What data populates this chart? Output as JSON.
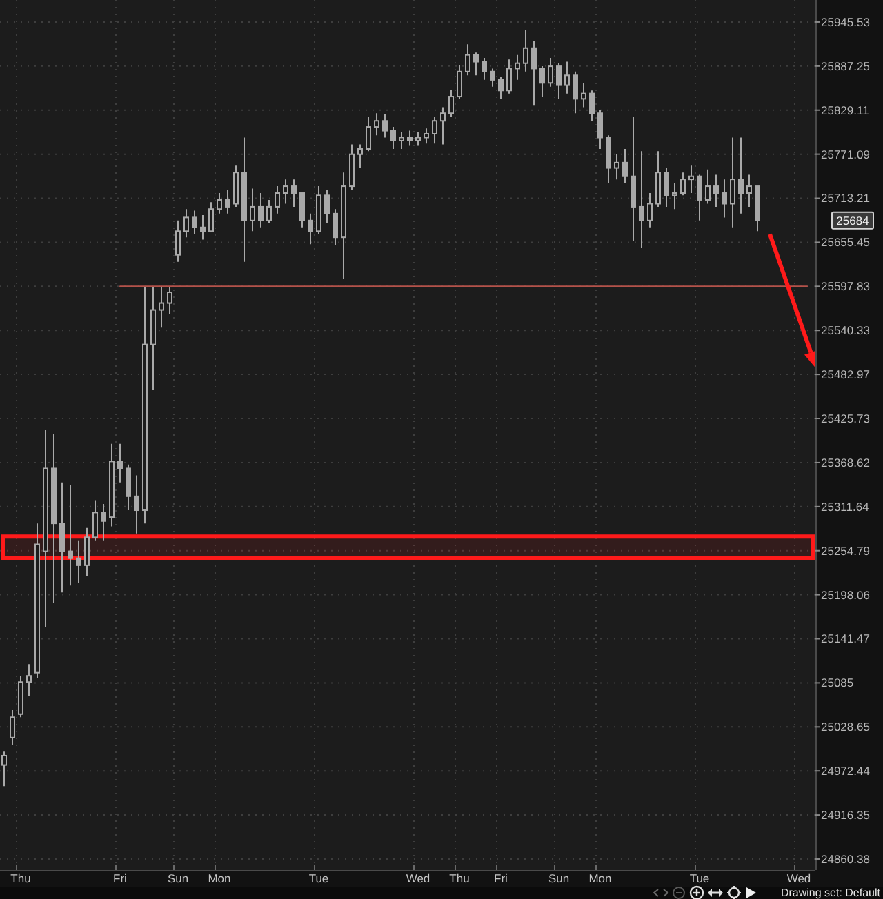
{
  "chart_data": {
    "type": "candlestick",
    "categories": [
      null,
      null,
      "Thu",
      null,
      null,
      null,
      null,
      null,
      null,
      null,
      null,
      null,
      null,
      null,
      "Fri",
      null,
      null,
      null,
      null,
      null,
      null,
      "Sun",
      null,
      null,
      null,
      null,
      "Mon",
      null,
      null,
      null,
      null,
      null,
      null,
      null,
      null,
      null,
      null,
      null,
      "Tue",
      null,
      null,
      null,
      null,
      null,
      null,
      null,
      null,
      null,
      null,
      null,
      "Wed",
      null,
      null,
      null,
      null,
      "Thu",
      null,
      null,
      null,
      null,
      "Fri",
      null,
      null,
      null,
      null,
      null,
      null,
      "Sun",
      null,
      null,
      null,
      null,
      "Mon",
      null,
      null,
      null,
      null,
      null,
      null,
      null,
      null,
      null,
      null,
      null,
      "Tue",
      null,
      null,
      null,
      null,
      null,
      null,
      null,
      null,
      null,
      null,
      null,
      "Wed",
      null
    ],
    "series": [
      {
        "color": "#a9a9a9",
        "ohlc": [
          [
            24980,
            24997,
            24953,
            24992
          ],
          [
            25015,
            25050,
            25006,
            25041
          ],
          [
            25045,
            25094,
            25041,
            25086
          ],
          [
            25086,
            25109,
            25068,
            25094
          ],
          [
            25098,
            25290,
            25091,
            25263
          ],
          [
            25254,
            25411,
            25156,
            25361
          ],
          [
            25361,
            25406,
            25187,
            25290
          ],
          [
            25290,
            25343,
            25201,
            25254
          ],
          [
            25254,
            25339,
            25210,
            25245
          ],
          [
            25245,
            25268,
            25213,
            25236
          ],
          [
            25236,
            25284,
            25222,
            25272
          ],
          [
            25272,
            25320,
            25268,
            25304
          ],
          [
            25304,
            25315,
            25268,
            25293
          ],
          [
            25298,
            25393,
            25286,
            25370
          ],
          [
            25370,
            25393,
            25343,
            25361
          ],
          [
            25361,
            25366,
            25307,
            25325
          ],
          [
            25325,
            25352,
            25277,
            25307
          ],
          [
            25307,
            25598,
            25290,
            25522
          ],
          [
            25522,
            25598,
            25463,
            25567
          ],
          [
            25567,
            25598,
            25544,
            25576
          ],
          [
            25576,
            25598,
            25562,
            25590
          ],
          [
            25639,
            25684,
            25630,
            25670
          ],
          [
            25670,
            25699,
            25662,
            25688
          ],
          [
            25688,
            25697,
            25666,
            25675
          ],
          [
            25675,
            25691,
            25659,
            25670
          ],
          [
            25670,
            25708,
            25670,
            25699
          ],
          [
            25699,
            25720,
            25693,
            25711
          ],
          [
            25711,
            25724,
            25693,
            25702
          ],
          [
            25706,
            25756,
            25702,
            25747
          ],
          [
            25747,
            25793,
            25630,
            25684
          ],
          [
            25684,
            25726,
            25670,
            25702
          ],
          [
            25702,
            25720,
            25675,
            25684
          ],
          [
            25684,
            25711,
            25681,
            25702
          ],
          [
            25702,
            25729,
            25693,
            25720
          ],
          [
            25720,
            25738,
            25706,
            25729
          ],
          [
            25729,
            25738,
            25702,
            25720
          ],
          [
            25720,
            25720,
            25675,
            25684
          ],
          [
            25684,
            25693,
            25653,
            25670
          ],
          [
            25670,
            25729,
            25666,
            25717
          ],
          [
            25717,
            25724,
            25681,
            25693
          ],
          [
            25693,
            25699,
            25652,
            25662
          ],
          [
            25662,
            25747,
            25608,
            25729
          ],
          [
            25729,
            25784,
            25724,
            25771
          ],
          [
            25771,
            25784,
            25753,
            25778
          ],
          [
            25778,
            25820,
            25775,
            25807
          ],
          [
            25807,
            25825,
            25796,
            25815
          ],
          [
            25815,
            25824,
            25793,
            25802
          ],
          [
            25802,
            25807,
            25778,
            25789
          ],
          [
            25789,
            25800,
            25778,
            25793
          ],
          [
            25793,
            25802,
            25782,
            25789
          ],
          [
            25789,
            25800,
            25782,
            25793
          ],
          [
            25793,
            25805,
            25785,
            25798
          ],
          [
            25798,
            25820,
            25785,
            25815
          ],
          [
            25815,
            25833,
            25784,
            25825
          ],
          [
            25825,
            25856,
            25820,
            25847
          ],
          [
            25847,
            25889,
            25844,
            25880
          ],
          [
            25880,
            25916,
            25875,
            25902
          ],
          [
            25902,
            25905,
            25875,
            25893
          ],
          [
            25893,
            25898,
            25869,
            25880
          ],
          [
            25880,
            25884,
            25860,
            25869
          ],
          [
            25869,
            25873,
            25844,
            25855
          ],
          [
            25855,
            25896,
            25851,
            25884
          ],
          [
            25884,
            25902,
            25869,
            25891
          ],
          [
            25891,
            25935,
            25880,
            25911
          ],
          [
            25911,
            25920,
            25835,
            25884
          ],
          [
            25884,
            25887,
            25847,
            25865
          ],
          [
            25865,
            25898,
            25860,
            25887
          ],
          [
            25887,
            25891,
            25844,
            25862
          ],
          [
            25862,
            25893,
            25851,
            25875
          ],
          [
            25875,
            25880,
            25825,
            25844
          ],
          [
            25844,
            25865,
            25833,
            25851
          ],
          [
            25851,
            25855,
            25815,
            25825
          ],
          [
            25825,
            25829,
            25778,
            25793
          ],
          [
            25793,
            25796,
            25733,
            25753
          ],
          [
            25753,
            25771,
            25738,
            25760
          ],
          [
            25760,
            25778,
            25733,
            25742
          ],
          [
            25742,
            25820,
            25657,
            25702
          ],
          [
            25702,
            25775,
            25648,
            25684
          ],
          [
            25684,
            25720,
            25675,
            25706
          ],
          [
            25706,
            25775,
            25702,
            25747
          ],
          [
            25747,
            25753,
            25702,
            25717
          ],
          [
            25717,
            25733,
            25699,
            25720
          ],
          [
            25720,
            25747,
            25717,
            25738
          ],
          [
            25738,
            25756,
            25720,
            25742
          ],
          [
            25742,
            25744,
            25684,
            25711
          ],
          [
            25711,
            25751,
            25706,
            25729
          ],
          [
            25729,
            25744,
            25702,
            25720
          ],
          [
            25720,
            25738,
            25688,
            25706
          ],
          [
            25706,
            25793,
            25675,
            25738
          ],
          [
            25738,
            25793,
            25693,
            25720
          ],
          [
            25720,
            25744,
            25702,
            25729
          ],
          [
            25729,
            25729,
            25670,
            25684
          ],
          null,
          null,
          null,
          null,
          null,
          null
        ]
      },
      {
        "type": "line",
        "color": "#b4524a",
        "values": [
          null,
          null,
          null,
          null,
          null,
          null,
          null,
          null,
          null,
          null,
          null,
          null,
          null,
          null,
          25598,
          25598,
          25598,
          25598,
          25598,
          25598,
          25598,
          25598,
          25598,
          25598,
          25598,
          25598,
          25598,
          25598,
          25598,
          25598,
          25598,
          25598,
          25598,
          25598,
          25598,
          25598,
          25598,
          25598,
          25598,
          25598,
          25598,
          25598,
          25598,
          25598,
          25598,
          25598,
          25598,
          25598,
          25598,
          25598,
          25598,
          25598,
          25598,
          25598,
          25598,
          25598,
          25598,
          25598,
          25598,
          25598,
          25598,
          25598,
          25598,
          25598,
          25598,
          25598,
          25598,
          25598,
          25598,
          25598,
          25598,
          25598,
          25598,
          25598,
          25598,
          25598,
          25598,
          25598,
          25598,
          25598,
          25598,
          25598,
          25598,
          25598,
          25598,
          25598,
          25598,
          25598,
          25598,
          25598,
          25598,
          25598,
          25598,
          25598,
          25598,
          25598,
          25598,
          25598
        ]
      }
    ],
    "ylim": [
      24846.4,
      25974.7
    ],
    "yticks": [
      25945.53,
      25887.25,
      25829.11,
      25771.09,
      25713.21,
      25655.45,
      25597.83,
      25540.33,
      25482.97,
      25425.73,
      25368.62,
      25311.64,
      25254.79,
      25198.06,
      25141.47,
      25085,
      25028.65,
      24972.44,
      24916.35,
      24860.38
    ],
    "log": "y",
    "grid": true,
    "bands": [
      {
        "axis": "y",
        "from": 25245,
        "to": 25273,
        "color": "#ff1a1a"
      }
    ],
    "annotations": [
      "25684",
      "Drawing set: Default"
    ]
  }
}
